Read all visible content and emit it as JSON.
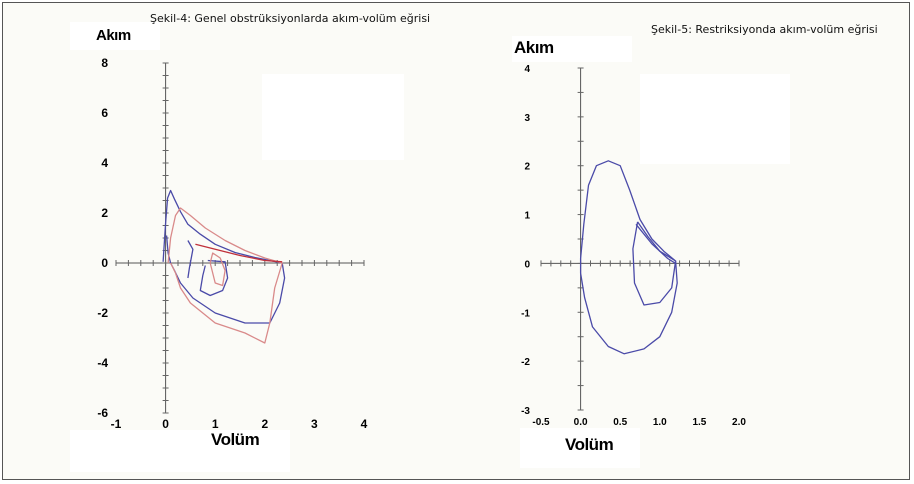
{
  "chart_data": [
    {
      "type": "line",
      "title": "Şekil-4: Genel obstrüksiyonlarda akım-volüm eğrisi",
      "xlabel": "Volüm",
      "ylabel": "Akım",
      "xlim": [
        -1,
        4
      ],
      "ylim": [
        -6,
        8
      ],
      "x_ticks": [
        "-1",
        "0",
        "1",
        "2",
        "3",
        "4"
      ],
      "y_ticks": [
        "-6",
        "-4",
        "-2",
        "0",
        "2",
        "4",
        "6",
        "8"
      ],
      "grid": false,
      "series": [
        {
          "color": "#4a4aa8",
          "points": [
            [
              -0.05,
              0.05
            ],
            [
              0.0,
              1.6
            ],
            [
              0.04,
              2.6
            ],
            [
              0.1,
              2.9
            ],
            [
              0.18,
              2.55
            ],
            [
              0.3,
              2.05
            ],
            [
              0.45,
              1.55
            ],
            [
              0.7,
              1.15
            ],
            [
              1.0,
              0.75
            ],
            [
              1.4,
              0.42
            ],
            [
              1.8,
              0.22
            ],
            [
              2.1,
              0.1
            ],
            [
              2.35,
              0.0
            ],
            [
              2.4,
              -0.6
            ],
            [
              2.3,
              -1.6
            ],
            [
              2.1,
              -2.4
            ],
            [
              1.6,
              -2.4
            ],
            [
              1.0,
              -2.0
            ],
            [
              0.55,
              -1.4
            ],
            [
              0.3,
              -0.8
            ],
            [
              0.18,
              -0.3
            ],
            [
              0.1,
              0.0
            ],
            [
              0.05,
              0.4
            ],
            [
              0.02,
              1.1
            ]
          ]
        },
        {
          "color": "#4a4aa8",
          "points": [
            [
              0.85,
              0.1
            ],
            [
              1.2,
              0.05
            ],
            [
              1.25,
              -0.6
            ],
            [
              1.15,
              -1.1
            ],
            [
              0.9,
              -1.3
            ],
            [
              0.7,
              -1.1
            ],
            [
              0.75,
              -0.5
            ],
            [
              0.8,
              -0.1
            ]
          ]
        },
        {
          "color": "#4a4aa8",
          "points": [
            [
              0.45,
              0.9
            ],
            [
              0.55,
              0.55
            ],
            [
              0.48,
              -0.2
            ],
            [
              0.45,
              -0.6
            ]
          ]
        },
        {
          "color": "#d98a8a",
          "points": [
            [
              0.05,
              0.0
            ],
            [
              0.1,
              1.0
            ],
            [
              0.2,
              1.9
            ],
            [
              0.3,
              2.2
            ],
            [
              0.5,
              1.9
            ],
            [
              0.8,
              1.4
            ],
            [
              1.2,
              0.9
            ],
            [
              1.6,
              0.5
            ],
            [
              2.0,
              0.2
            ],
            [
              2.35,
              0.0
            ],
            [
              2.2,
              -1.0
            ],
            [
              2.1,
              -2.4
            ],
            [
              2.0,
              -3.2
            ],
            [
              1.6,
              -2.8
            ],
            [
              1.0,
              -2.4
            ],
            [
              0.5,
              -1.6
            ],
            [
              0.3,
              -1.0
            ],
            [
              0.2,
              -0.4
            ],
            [
              0.1,
              0.0
            ]
          ]
        },
        {
          "color": "#d98a8a",
          "points": [
            [
              0.9,
              0.0
            ],
            [
              1.0,
              -0.8
            ],
            [
              1.15,
              -0.9
            ],
            [
              1.2,
              -0.3
            ],
            [
              1.1,
              0.2
            ],
            [
              0.95,
              0.4
            ],
            [
              0.9,
              0.0
            ]
          ]
        },
        {
          "color": "#c0303a",
          "points": [
            [
              0.6,
              0.75
            ],
            [
              1.0,
              0.55
            ],
            [
              1.5,
              0.3
            ],
            [
              2.0,
              0.1
            ],
            [
              2.35,
              0.05
            ]
          ]
        }
      ]
    },
    {
      "type": "line",
      "title": "Şekil-5: Restriksiyonda akım-volüm eğrisi",
      "xlabel": "Volüm",
      "ylabel": "Akım",
      "xlim": [
        -0.5,
        2.0
      ],
      "ylim": [
        -3,
        4
      ],
      "x_ticks": [
        "-0.5",
        "0.0",
        "0.5",
        "1.0",
        "1.5",
        "2.0"
      ],
      "y_ticks": [
        "-3",
        "-2",
        "-1",
        "0",
        "1",
        "2",
        "3",
        "4"
      ],
      "grid": false,
      "series": [
        {
          "color": "#4a4aa8",
          "points": [
            [
              0.0,
              0.1
            ],
            [
              0.04,
              0.8
            ],
            [
              0.1,
              1.6
            ],
            [
              0.2,
              2.0
            ],
            [
              0.35,
              2.1
            ],
            [
              0.5,
              2.0
            ],
            [
              0.62,
              1.5
            ],
            [
              0.75,
              0.9
            ],
            [
              0.9,
              0.5
            ],
            [
              1.05,
              0.25
            ],
            [
              1.2,
              0.05
            ],
            [
              1.22,
              -0.4
            ],
            [
              1.15,
              -1.0
            ],
            [
              1.0,
              -1.5
            ],
            [
              0.8,
              -1.75
            ],
            [
              0.55,
              -1.85
            ],
            [
              0.35,
              -1.7
            ],
            [
              0.15,
              -1.3
            ],
            [
              0.05,
              -0.7
            ],
            [
              0.0,
              -0.2
            ],
            [
              0.0,
              0.1
            ]
          ]
        },
        {
          "color": "#4a4aa8",
          "points": [
            [
              0.72,
              0.85
            ],
            [
              0.85,
              0.55
            ],
            [
              1.0,
              0.25
            ],
            [
              1.2,
              0.05
            ],
            [
              1.15,
              -0.5
            ],
            [
              1.0,
              -0.8
            ],
            [
              0.8,
              -0.85
            ],
            [
              0.68,
              -0.4
            ],
            [
              0.66,
              0.3
            ],
            [
              0.72,
              0.85
            ]
          ]
        },
        {
          "color": "#4a4aa8",
          "points": [
            [
              0.7,
              0.8
            ],
            [
              0.9,
              0.4
            ],
            [
              1.1,
              0.1
            ],
            [
              1.2,
              0.0
            ]
          ]
        }
      ]
    }
  ]
}
